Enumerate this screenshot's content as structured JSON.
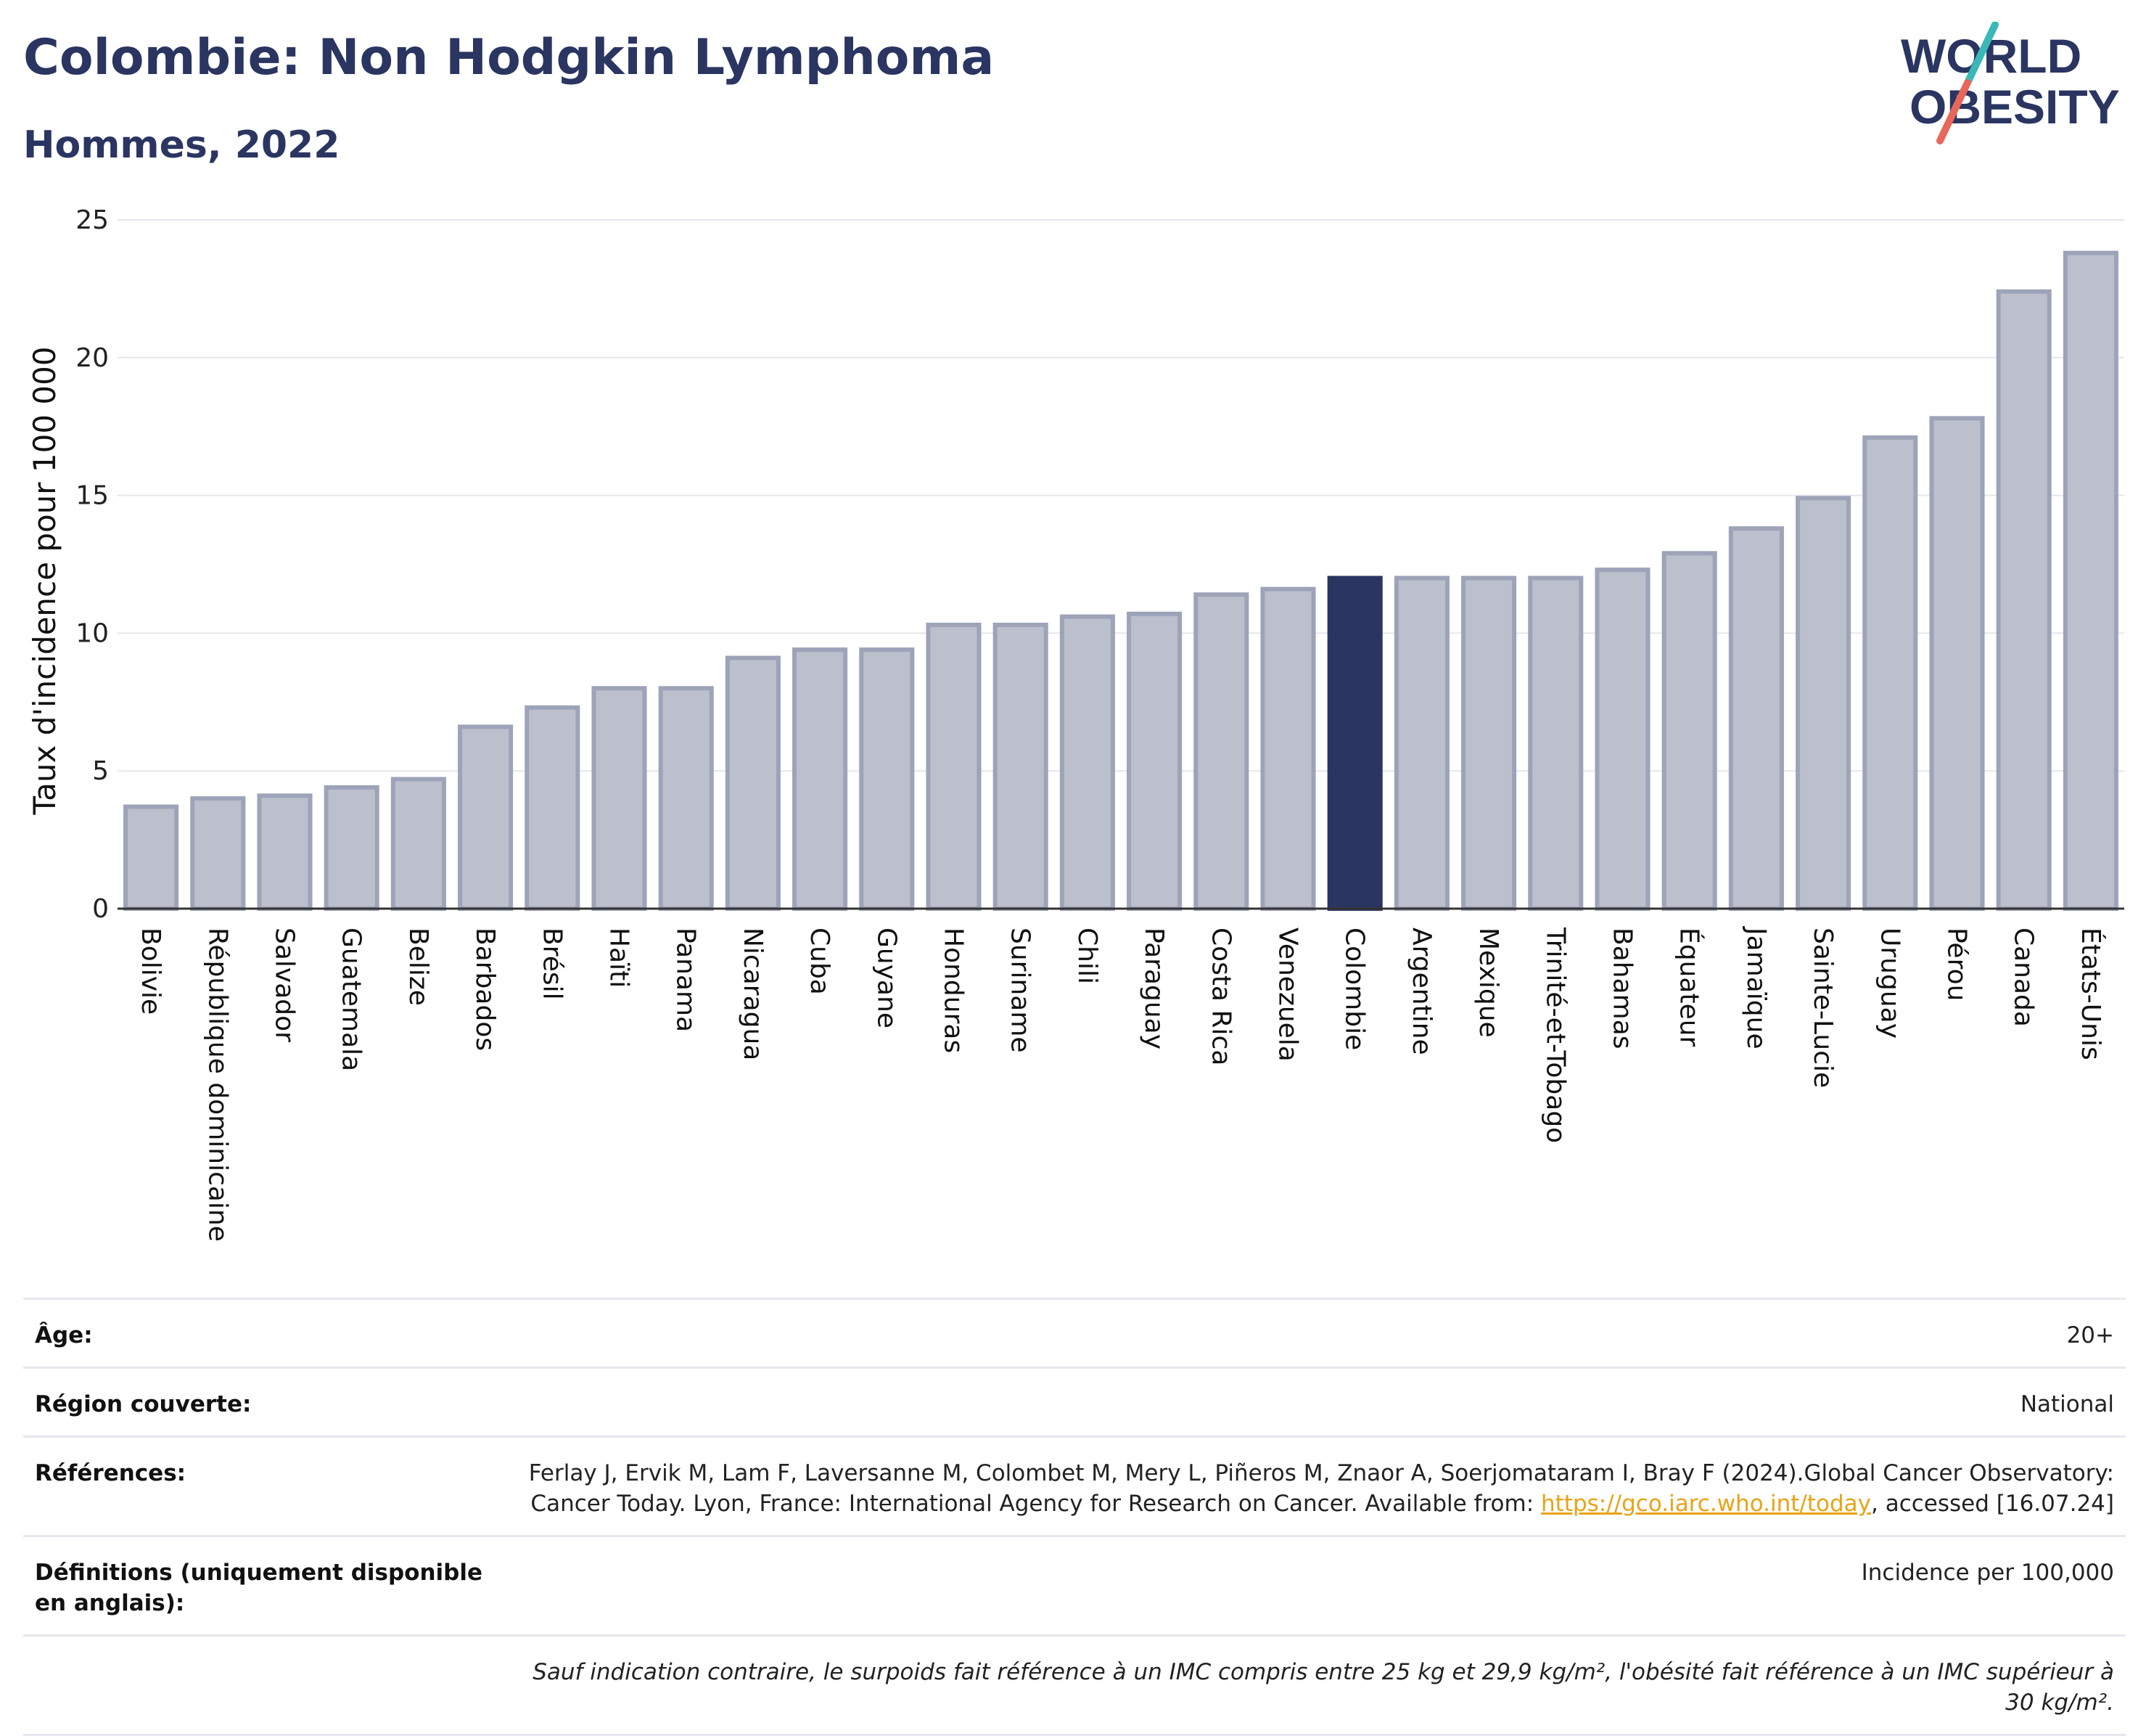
{
  "header": {
    "title": "Colombie: Non Hodgkin Lymphoma",
    "subtitle": "Hommes, 2022"
  },
  "logo": {
    "line1": "WORLD",
    "line2": "OBESITY",
    "colors": {
      "text": "#2a3561",
      "slash_top": "#3ab8b8",
      "slash_bottom": "#e8675a"
    }
  },
  "chart_data": {
    "type": "bar",
    "title": "",
    "xlabel": "",
    "ylabel": "Taux d'incidence pour 100 000",
    "ylim": [
      0,
      25
    ],
    "yticks": [
      0,
      5,
      10,
      15,
      20,
      25
    ],
    "grid": true,
    "highlight": "Colombie",
    "colors": {
      "bar": "#bcc0cd",
      "bar_border": "#9da3b8",
      "highlight": "#2a3561",
      "grid": "#e4e6ec",
      "axis": "#333333"
    },
    "categories": [
      "Bolivie",
      "République dominicaine",
      "Salvador",
      "Guatemala",
      "Belize",
      "Barbados",
      "Brésil",
      "Haïti",
      "Panama",
      "Nicaragua",
      "Cuba",
      "Guyane",
      "Honduras",
      "Suriname",
      "Chili",
      "Paraguay",
      "Costa Rica",
      "Venezuela",
      "Colombie",
      "Argentine",
      "Mexique",
      "Trinité-et-Tobago",
      "Bahamas",
      "Équateur",
      "Jamaïque",
      "Sainte-Lucie",
      "Uruguay",
      "Pérou",
      "Canada",
      "États-Unis"
    ],
    "values": [
      3.7,
      4.0,
      4.1,
      4.4,
      4.7,
      6.6,
      7.3,
      8.0,
      8.0,
      9.1,
      9.4,
      9.4,
      10.3,
      10.3,
      10.6,
      10.7,
      11.4,
      11.6,
      12.0,
      12.0,
      12.0,
      12.0,
      12.3,
      12.9,
      13.8,
      14.9,
      17.1,
      17.8,
      22.4,
      23.8
    ]
  },
  "meta": {
    "age_label": "Âge:",
    "age_value": "20+",
    "region_label": "Région couverte:",
    "region_value": "National",
    "ref_label": "Références:",
    "ref_text": "Ferlay J, Ervik M, Lam F, Laversanne M, Colombet M, Mery L, Piñeros M, Znaor A, Soerjomataram I, Bray F (2024).Global Cancer Observatory: Cancer Today. Lyon, France: International Agency for Research on Cancer. Available from: ",
    "ref_link": "https://gco.iarc.who.int/today",
    "ref_suffix": ", accessed [16.07.24]",
    "def_label": "Définitions (uniquement disponible en anglais):",
    "def_value": "Incidence per 100,000",
    "note": "Sauf indication contraire, le surpoids fait référence à un IMC compris entre 25 kg et 29,9 kg/m², l'obésité fait référence à un IMC supérieur à 30 kg/m²."
  }
}
